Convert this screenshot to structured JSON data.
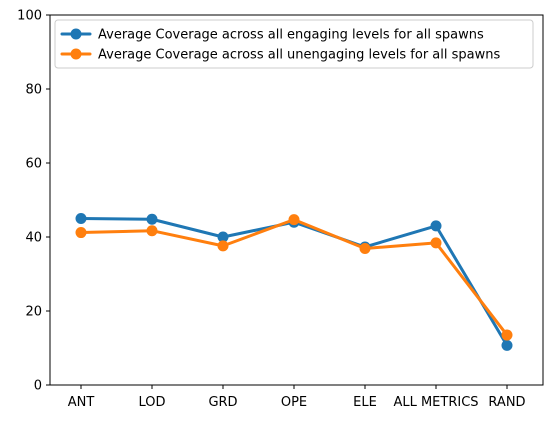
{
  "chart_data": {
    "type": "line",
    "categories": [
      "ANT",
      "LOD",
      "GRD",
      "OPE",
      "ELE",
      "ALL METRICS",
      "RAND"
    ],
    "ylim": [
      0,
      100
    ],
    "yticks": [
      0,
      20,
      40,
      60,
      80,
      100
    ],
    "grid": false,
    "legend_placement": "top-left",
    "series": [
      {
        "name": "Average Coverage across all engaging levels for all spawns",
        "color": "#1f77b4",
        "values": [
          45.0,
          44.8,
          40.0,
          44.0,
          37.3,
          43.0,
          10.7
        ]
      },
      {
        "name": "Average Coverage across all unengaging levels for all spawns",
        "color": "#ff7f0e",
        "values": [
          41.2,
          41.7,
          37.6,
          44.7,
          36.9,
          38.4,
          13.5
        ]
      }
    ]
  }
}
